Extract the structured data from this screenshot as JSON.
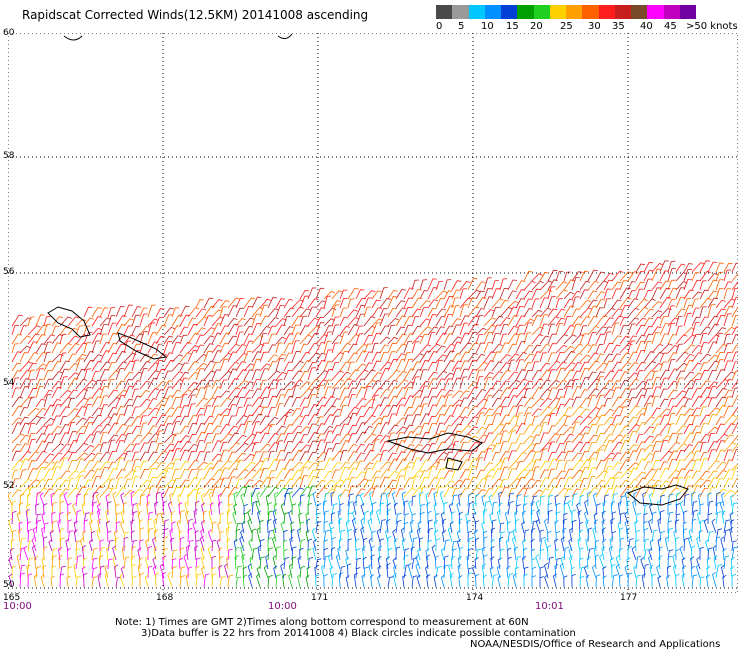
{
  "title": "Rapidscat Corrected Winds(12.5KM) 20141008 ascending",
  "colorbar": {
    "colors": [
      "#4a4a4a",
      "#9a9a9a",
      "#00c8ff",
      "#0090ff",
      "#0040d8",
      "#00a000",
      "#20d020",
      "#ffd000",
      "#ffa000",
      "#ff6000",
      "#ff1e1e",
      "#c81e1e",
      "#7a4a2a",
      "#ff00ff",
      "#c000c0",
      "#7000a0"
    ],
    "labels": [
      "0",
      "5",
      "10",
      "15",
      "20",
      "25",
      "30",
      "35",
      "40",
      "45",
      ">50 knots"
    ]
  },
  "map": {
    "lat_labels": [
      "60",
      "58",
      "56",
      "54",
      "52",
      "50"
    ],
    "lon_labels": [
      "165",
      "168",
      "171",
      "174",
      "177"
    ],
    "time_labels": [
      "10:00",
      "10:00",
      "10:01"
    ]
  },
  "notes": {
    "line1": "Note: 1) Times are GMT 2)Times along bottom correspond to measurement at 60N",
    "line2": "3)Data buffer is 22 hrs from 20141008 4) Black circles indicate possible contamination",
    "line3": "NOAA/NESDIS/Office of Research and Applications"
  }
}
